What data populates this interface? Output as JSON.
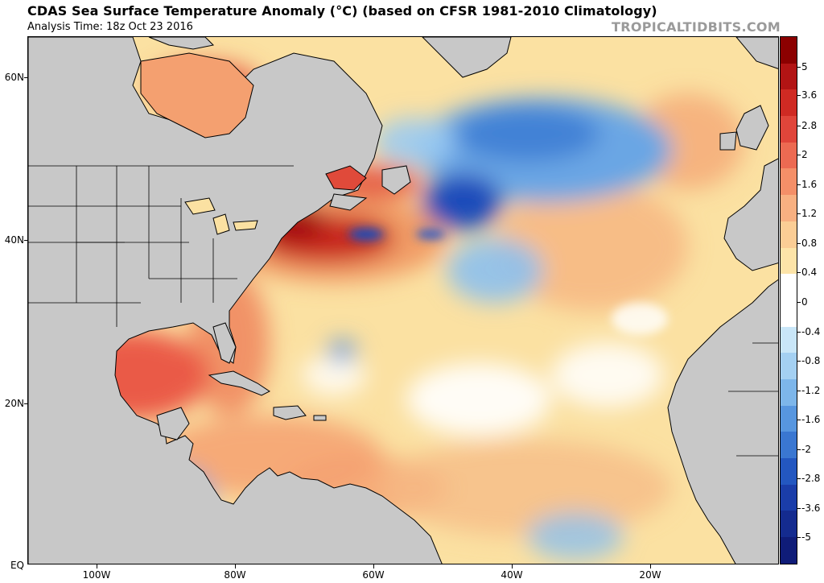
{
  "header": {
    "title": "CDAS Sea Surface Temperature Anomaly (°C) (based on CFSR 1981-2010 Climatology)",
    "subtitle": "Analysis Time: 18z Oct 23 2016",
    "watermark": "TROPICALTIDBITS.COM"
  },
  "map": {
    "lat_labels": [
      "60N",
      "40N",
      "20N",
      "EQ"
    ],
    "lon_labels": [
      "100W",
      "80W",
      "60W",
      "40W",
      "20W"
    ],
    "colors": {
      "land": "#c8c8c8",
      "ocean_base": "#fbe3a6",
      "border": "#000000"
    }
  },
  "colorbar": {
    "labels": [
      "5",
      "3.6",
      "2.8",
      "2",
      "1.6",
      "1.2",
      "0.8",
      "0.4",
      "0",
      "-0.4",
      "-0.8",
      "-1.2",
      "-1.6",
      "-2",
      "-2.8",
      "-3.6",
      "-5"
    ],
    "colors": [
      "#8b0000",
      "#b21414",
      "#cf2a23",
      "#e0453a",
      "#ec6a52",
      "#f48f68",
      "#f8b081",
      "#fbcd95",
      "#fde4a8",
      "#ffffff",
      "#ffffff",
      "#c9e6f8",
      "#a4d0f2",
      "#7db6ea",
      "#5796df",
      "#3a77d1",
      "#2357c0",
      "#1a3da9",
      "#142b8f",
      "#0f1c78"
    ]
  }
}
